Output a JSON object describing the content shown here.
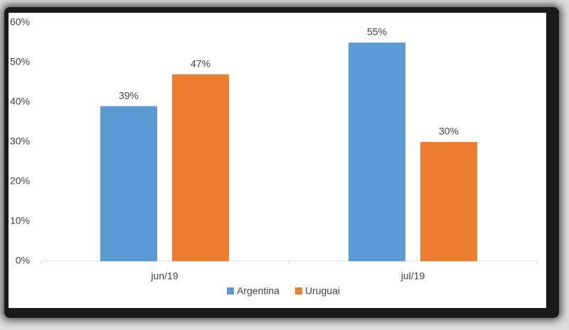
{
  "chart_data": {
    "type": "bar",
    "categories": [
      "jun/19",
      "jul/19"
    ],
    "series": [
      {
        "name": "Argentina",
        "color": "#5b9bd5",
        "values": [
          39,
          55
        ],
        "value_labels": [
          "39%",
          "55%"
        ]
      },
      {
        "name": "Uruguai",
        "color": "#ed7d31",
        "values": [
          47,
          30
        ],
        "value_labels": [
          "47%",
          "30%"
        ]
      }
    ],
    "ylim": [
      0,
      60
    ],
    "yticks": [
      {
        "value": 0,
        "label": "0%"
      },
      {
        "value": 10,
        "label": "10%"
      },
      {
        "value": 20,
        "label": "20%"
      },
      {
        "value": 30,
        "label": "30%"
      },
      {
        "value": 40,
        "label": "40%"
      },
      {
        "value": 50,
        "label": "50%"
      },
      {
        "value": 60,
        "label": "60%"
      }
    ],
    "legend": "bottom"
  }
}
